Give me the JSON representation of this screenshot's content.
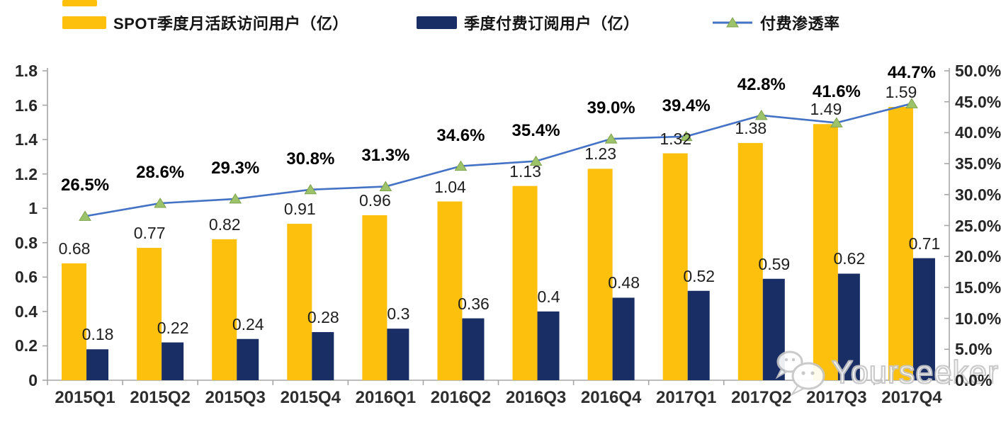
{
  "colors": {
    "mau_bar": "#FCC00D",
    "sub_bar": "#1A2E66",
    "line": "#4472C4",
    "marker_fill": "#9DC36A",
    "marker_stroke": "#7FA24F",
    "axis": "#A6A6A6"
  },
  "legend": [
    {
      "label": "SPOT季度月活跃访问用户（亿）",
      "type": "bar",
      "color_key": "mau_bar"
    },
    {
      "label": "季度付费订阅用户（亿）",
      "type": "bar",
      "color_key": "sub_bar"
    },
    {
      "label": "付费渗透率",
      "type": "line",
      "color_key": "line"
    }
  ],
  "watermark": {
    "icon": "wechat-icon",
    "text": "Yourseeker"
  },
  "chart_data": {
    "type": "combo",
    "categories": [
      "2015Q1",
      "2015Q2",
      "2015Q3",
      "2015Q4",
      "2016Q1",
      "2016Q2",
      "2016Q3",
      "2016Q4",
      "2017Q1",
      "2017Q2",
      "2017Q3",
      "2017Q4"
    ],
    "series": [
      {
        "name": "SPOT季度月活跃访问用户（亿）",
        "type": "bar",
        "axis": "left",
        "values": [
          0.68,
          0.77,
          0.82,
          0.91,
          0.96,
          1.04,
          1.13,
          1.23,
          1.32,
          1.38,
          1.49,
          1.59
        ],
        "labels": [
          "0.68",
          "0.77",
          "0.82",
          "0.91",
          "0.96",
          "1.04",
          "1.13",
          "1.23",
          "1.32",
          "1.38",
          "1.49",
          "1.59"
        ]
      },
      {
        "name": "季度付费订阅用户（亿）",
        "type": "bar",
        "axis": "left",
        "values": [
          0.18,
          0.22,
          0.24,
          0.28,
          0.3,
          0.36,
          0.4,
          0.48,
          0.52,
          0.59,
          0.62,
          0.71
        ],
        "labels": [
          "0.18",
          "0.22",
          "0.24",
          "0.28",
          "0.3",
          "0.36",
          "0.4",
          "0.48",
          "0.52",
          "0.59",
          "0.62",
          "0.71"
        ]
      },
      {
        "name": "付费渗透率",
        "type": "line",
        "axis": "right",
        "values": [
          26.5,
          28.6,
          29.3,
          30.8,
          31.3,
          34.6,
          35.4,
          39.0,
          39.4,
          42.8,
          41.6,
          44.7
        ],
        "labels": [
          "26.5%",
          "28.6%",
          "29.3%",
          "30.8%",
          "31.3%",
          "34.6%",
          "35.4%",
          "39.0%",
          "39.4%",
          "42.8%",
          "41.6%",
          "44.7%"
        ]
      }
    ],
    "left_axis": {
      "min": 0,
      "max": 1.8,
      "tick_values": [
        1.8,
        1.6,
        1.4,
        1.2,
        1.0,
        0.8,
        0.6,
        0.4,
        0.2,
        0
      ],
      "tick_labels": [
        "1.8",
        "1.6",
        "1.4",
        "1.2",
        "1",
        "0.8",
        "0.6",
        "0.4",
        "0.2",
        "0"
      ]
    },
    "right_axis": {
      "min": 0,
      "max": 50,
      "tick_values": [
        50,
        45,
        40,
        35,
        30,
        25,
        20,
        15,
        10,
        5,
        0
      ],
      "tick_labels": [
        "50.0%",
        "45.0%",
        "40.0%",
        "35.0%",
        "30.0%",
        "25.0%",
        "20.0%",
        "15.0%",
        "10.0%",
        "5.0%",
        "0.0%"
      ]
    },
    "grid": false,
    "legend_position": "top"
  }
}
